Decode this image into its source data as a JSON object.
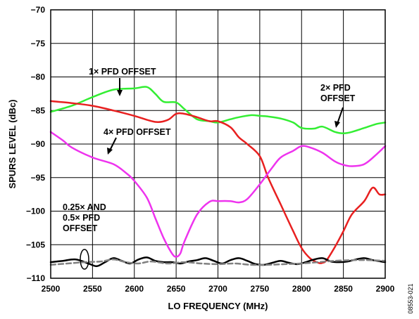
{
  "chart_data": {
    "type": "line",
    "xlabel": "LO FREQUENCY (MHz)",
    "ylabel": "SPURS LEVEL (dBc)",
    "xlim": [
      2500,
      2900
    ],
    "ylim": [
      -110,
      -70
    ],
    "x_ticks": [
      "2500",
      "2550",
      "2600",
      "2650",
      "2700",
      "2750",
      "2800",
      "2850",
      "2900"
    ],
    "y_ticks": [
      "−70",
      "−75",
      "−80",
      "−85",
      "−90",
      "−95",
      "−100",
      "−105",
      "−110"
    ],
    "grid": true,
    "figure_id": "08553-021",
    "annotations": {
      "one_x": "1× PFD OFFSET",
      "two_x_line1": "2× PFD",
      "two_x_line2": "OFFSET",
      "four_x": "4× PFD OFFSET",
      "quarter_line1": "0.25× AND",
      "quarter_line2": "0.5× PFD",
      "quarter_line3": "OFFSET"
    },
    "series": [
      {
        "color": "#33ee33",
        "x": [
          2500,
          2525,
          2550,
          2575,
          2600,
          2615,
          2625,
          2635,
          2650,
          2660,
          2675,
          2690,
          2700,
          2715,
          2725,
          2740,
          2750,
          2760,
          2775,
          2790,
          2800,
          2815,
          2825,
          2840,
          2850,
          2860,
          2875,
          2890,
          2900
        ],
        "y": [
          -85.2,
          -84.3,
          -83.0,
          -81.9,
          -81.7,
          -81.5,
          -82.5,
          -83.7,
          -83.8,
          -84.8,
          -86.3,
          -86.6,
          -86.8,
          -86.3,
          -86.0,
          -85.7,
          -85.8,
          -85.9,
          -86.2,
          -86.8,
          -87.6,
          -87.7,
          -87.4,
          -88.2,
          -88.4,
          -88.2,
          -87.6,
          -87.0,
          -86.8
        ]
      },
      {
        "color": "#e82020",
        "x": [
          2500,
          2525,
          2550,
          2575,
          2600,
          2625,
          2640,
          2650,
          2660,
          2675,
          2690,
          2700,
          2715,
          2725,
          2735,
          2750,
          2760,
          2775,
          2790,
          2800,
          2810,
          2820,
          2825,
          2830,
          2840,
          2850,
          2860,
          2875,
          2885,
          2893,
          2900
        ],
        "y": [
          -83.6,
          -83.9,
          -84.3,
          -85.0,
          -85.8,
          -86.7,
          -86.4,
          -85.5,
          -85.5,
          -86.0,
          -86.6,
          -86.6,
          -87.5,
          -89.0,
          -90.0,
          -91.8,
          -95.0,
          -99.0,
          -103.0,
          -105.5,
          -107.0,
          -107.7,
          -107.7,
          -107.3,
          -105.3,
          -103.0,
          -100.5,
          -98.5,
          -96.5,
          -97.5,
          -97.5
        ]
      },
      {
        "color": "#ee33ee",
        "x": [
          2500,
          2515,
          2525,
          2550,
          2575,
          2590,
          2600,
          2615,
          2625,
          2635,
          2645,
          2650,
          2655,
          2660,
          2675,
          2690,
          2700,
          2715,
          2725,
          2735,
          2750,
          2765,
          2775,
          2790,
          2800,
          2810,
          2825,
          2840,
          2850,
          2860,
          2875,
          2890,
          2900
        ],
        "y": [
          -88.2,
          -89.5,
          -90.5,
          -92.0,
          -93.0,
          -94.3,
          -95.5,
          -98.0,
          -101.0,
          -104.0,
          -106.3,
          -106.8,
          -106.3,
          -104.5,
          -100.5,
          -98.6,
          -98.5,
          -98.5,
          -98.7,
          -98.2,
          -96.0,
          -93.5,
          -92.0,
          -91.0,
          -90.3,
          -90.5,
          -91.3,
          -92.6,
          -93.1,
          -93.3,
          -93.0,
          -91.5,
          -90.3
        ]
      },
      {
        "color": "#000000",
        "x": [
          2500,
          2515,
          2530,
          2545,
          2555,
          2565,
          2575,
          2585,
          2595,
          2605,
          2615,
          2625,
          2635,
          2645,
          2655,
          2665,
          2675,
          2685,
          2695,
          2705,
          2715,
          2725,
          2735,
          2745,
          2755,
          2765,
          2775,
          2785,
          2795,
          2805,
          2815,
          2825,
          2835,
          2845,
          2855,
          2865,
          2875,
          2885,
          2900
        ],
        "y": [
          -107.6,
          -107.4,
          -107.2,
          -107.8,
          -108.2,
          -107.6,
          -107.0,
          -107.4,
          -107.8,
          -107.2,
          -106.9,
          -107.4,
          -107.6,
          -107.6,
          -107.8,
          -107.5,
          -107.3,
          -107.0,
          -107.4,
          -107.8,
          -107.3,
          -107.0,
          -107.4,
          -107.9,
          -108.0,
          -107.7,
          -107.4,
          -107.7,
          -107.9,
          -107.6,
          -107.2,
          -107.0,
          -107.5,
          -107.6,
          -107.5,
          -107.2,
          -107.0,
          -107.3,
          -107.6
        ]
      },
      {
        "color": "#808080",
        "dashed": true,
        "x": [
          2500,
          2520,
          2540,
          2560,
          2575,
          2590,
          2605,
          2620,
          2640,
          2660,
          2680,
          2700,
          2720,
          2740,
          2760,
          2780,
          2800,
          2820,
          2840,
          2860,
          2880,
          2900
        ],
        "y": [
          -108.0,
          -107.8,
          -107.6,
          -107.5,
          -107.2,
          -107.6,
          -107.8,
          -107.5,
          -107.8,
          -107.6,
          -107.8,
          -107.9,
          -107.8,
          -108.0,
          -108.0,
          -107.9,
          -107.8,
          -107.6,
          -107.4,
          -107.3,
          -107.3,
          -107.4
        ]
      }
    ]
  }
}
